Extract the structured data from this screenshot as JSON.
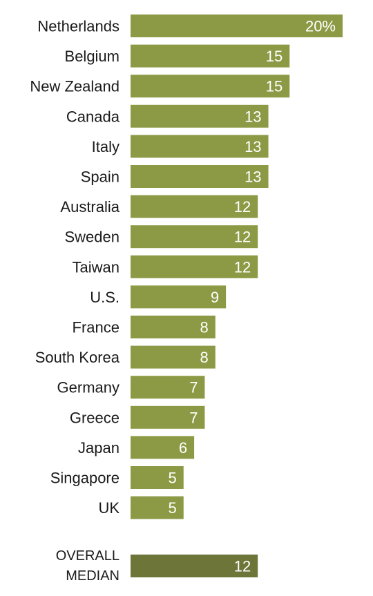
{
  "chart_data": {
    "type": "bar",
    "orientation": "horizontal",
    "categories": [
      "Netherlands",
      "Belgium",
      "New Zealand",
      "Canada",
      "Italy",
      "Spain",
      "Australia",
      "Sweden",
      "Taiwan",
      "U.S.",
      "France",
      "South Korea",
      "Germany",
      "Greece",
      "Japan",
      "Singapore",
      "UK"
    ],
    "values": [
      20,
      15,
      15,
      13,
      13,
      13,
      12,
      12,
      12,
      9,
      8,
      8,
      7,
      7,
      6,
      5,
      5
    ],
    "value_labels": [
      "20%",
      "15",
      "15",
      "13",
      "13",
      "13",
      "12",
      "12",
      "12",
      "9",
      "8",
      "8",
      "7",
      "7",
      "6",
      "5",
      "5"
    ],
    "median": {
      "label_lines": [
        "OVERALL",
        "MEDIAN"
      ],
      "value": 12,
      "value_label": "12"
    },
    "bar_color": "#8d9a45",
    "median_bar_color": "#6e7539",
    "value_label_color": "#ffffff",
    "grid": false,
    "legend": "none"
  }
}
